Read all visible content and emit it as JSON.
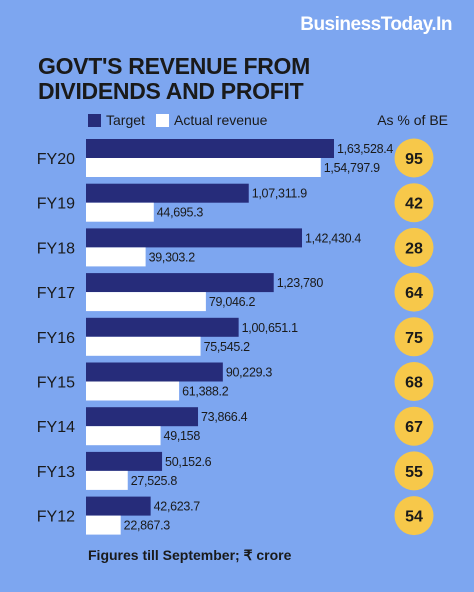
{
  "brand": "BusinessToday.In",
  "title": "GOVT'S REVENUE FROM DIVIDENDS AND PROFIT",
  "legend": {
    "target": "Target",
    "actual": "Actual revenue"
  },
  "be_header": "As % of BE",
  "footnote": "Figures till September; ₹ crore",
  "colors": {
    "background": "#7da6f0",
    "target": "#262c7a",
    "actual": "#ffffff",
    "badge": "#f7c84a"
  },
  "chart_data": {
    "type": "bar",
    "orientation": "horizontal",
    "categories": [
      "FY20",
      "FY19",
      "FY18",
      "FY17",
      "FY16",
      "FY15",
      "FY14",
      "FY13",
      "FY12"
    ],
    "series": [
      {
        "name": "Target",
        "values": [
          163528.4,
          107311.9,
          142430.4,
          123780,
          100651.1,
          90229.3,
          73866.4,
          50152.6,
          42623.7
        ],
        "labels": [
          "1,63,528.4",
          "1,07,311.9",
          "1,42,430.4",
          "1,23,780",
          "1,00,651.1",
          "90,229.3",
          "73,866.4",
          "50,152.6",
          "42,623.7"
        ]
      },
      {
        "name": "Actual revenue",
        "values": [
          154797.9,
          44695.3,
          39303.2,
          79046.2,
          75545.2,
          61388.2,
          49158,
          27525.8,
          22867.3
        ],
        "labels": [
          "1,54,797.9",
          "44,695.3",
          "39,303.2",
          "79,046.2",
          "75,545.2",
          "61,388.2",
          "49,158",
          "27,525.8",
          "22,867.3"
        ]
      }
    ],
    "percent_of_be": [
      95,
      42,
      28,
      64,
      75,
      68,
      67,
      55,
      54
    ],
    "xlim": [
      0,
      163528.4
    ]
  }
}
